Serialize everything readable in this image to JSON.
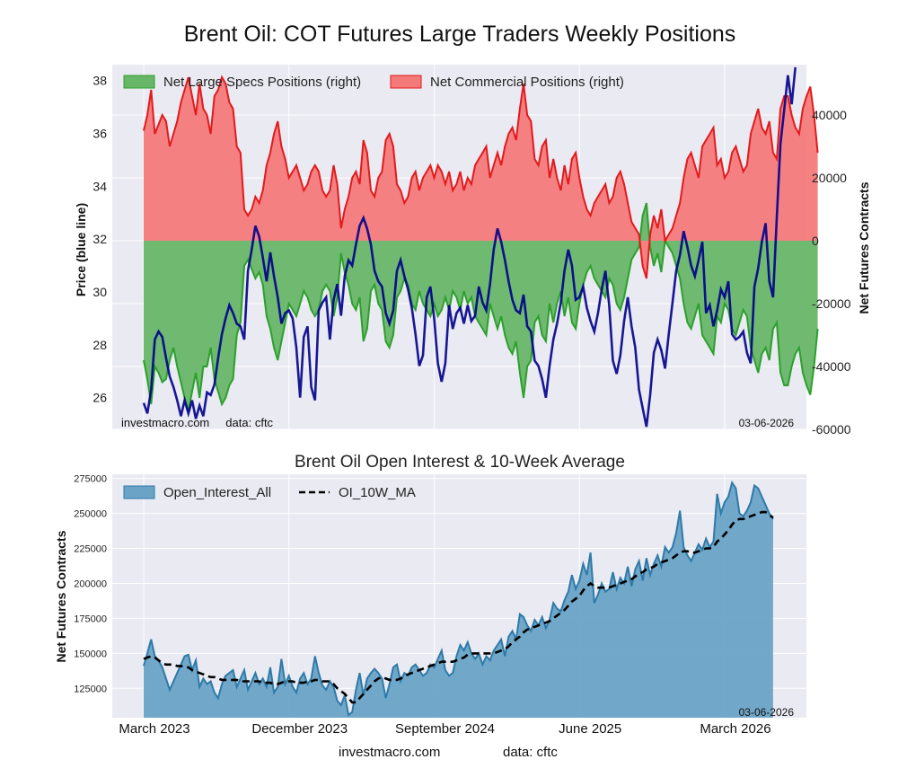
{
  "title": "Brent Oil: COT Futures Large Traders Weekly Positions",
  "footer": {
    "site": "investmacro.com",
    "source": "data: cftc"
  },
  "colors": {
    "plot_bg": "#eaeaf2",
    "grid": "#ffffff",
    "specs": "#2ca02c",
    "specs_fill": "#68b668",
    "commercial": "#e31a1c",
    "commercial_fill": "#f47a7a",
    "price": "#00008b",
    "oi": "#2e7aa8",
    "oi_fill": "#6aa3c6",
    "ma": "#000000"
  },
  "chart_data": [
    {
      "type": "area",
      "id": "positions",
      "title": "",
      "ylabel_left": "Price (blue line)",
      "ylabel_right": "Net Futures Contracts",
      "ylim_left": [
        24.8,
        38.6
      ],
      "ylim_right": [
        -60000,
        56000
      ],
      "yticks_left": [
        26,
        28,
        30,
        32,
        34,
        36,
        38
      ],
      "yticks_right": [
        -60000,
        -40000,
        -20000,
        0,
        20000,
        40000
      ],
      "xlim": [
        0,
        170
      ],
      "xtick_positions": [
        0,
        39,
        78,
        117,
        156
      ],
      "xticks": [
        "March 2023",
        "December 2023",
        "September 2024",
        "June 2025",
        "March 2026"
      ],
      "grid": true,
      "legend": "top-left",
      "annotation_left": "investmacro.com     data: cftc",
      "annotation_right": "03-06-2026",
      "series": [
        {
          "name": "Net Large Specs Positions (right)",
          "axis": "right",
          "kind": "area",
          "values": [
            -38000,
            -44000,
            -52000,
            -40000,
            -42000,
            -45000,
            -44000,
            -38000,
            -34000,
            -40000,
            -45000,
            -50000,
            -54000,
            -48000,
            -42000,
            -50000,
            -40000,
            -40000,
            -34000,
            -44000,
            -48000,
            -52000,
            -50000,
            -46000,
            -44000,
            -30000,
            -26000,
            -8000,
            -6000,
            -9000,
            -12000,
            -10000,
            -14000,
            -24000,
            -28000,
            -34000,
            -38000,
            -32000,
            -26000,
            -20000,
            -22000,
            -24000,
            -20000,
            -16000,
            -18000,
            -22000,
            -24000,
            -22000,
            -16000,
            -14000,
            -16000,
            -24000,
            -18000,
            -4000,
            -10000,
            -14000,
            -20000,
            -22000,
            -18000,
            -32000,
            -28000,
            -16000,
            -14000,
            -20000,
            -22000,
            -32000,
            -34000,
            -30000,
            -18000,
            -16000,
            -12000,
            -14000,
            -20000,
            -22000,
            -16000,
            -20000,
            -22000,
            -24000,
            -20000,
            -24000,
            -22000,
            -18000,
            -22000,
            -16000,
            -18000,
            -22000,
            -16000,
            -20000,
            -18000,
            -24000,
            -26000,
            -28000,
            -30000,
            -20000,
            -24000,
            -28000,
            -24000,
            -30000,
            -34000,
            -36000,
            -32000,
            -42000,
            -50000,
            -40000,
            -38000,
            -26000,
            -24000,
            -30000,
            -32000,
            -20000,
            -26000,
            -20000,
            -16000,
            -24000,
            -18000,
            -26000,
            -28000,
            -20000,
            -14000,
            -10000,
            -8000,
            -12000,
            -14000,
            -16000,
            -18000,
            -12000,
            -14000,
            -20000,
            -22000,
            -18000,
            -12000,
            -6000,
            -4000,
            -2000,
            8000,
            12000,
            -2000,
            -8000,
            -4000,
            -10000,
            0,
            -2000,
            -4000,
            -8000,
            -12000,
            -20000,
            -26000,
            -28000,
            -24000,
            -20000,
            -30000,
            -32000,
            -34000,
            -36000,
            -24000,
            -26000,
            -20000,
            -22000,
            -28000,
            -30000,
            -26000,
            -22000,
            -24000,
            -34000,
            -38000,
            -42000,
            -36000,
            -34000,
            -38000,
            -28000,
            -26000,
            -42000,
            -46000,
            -46000,
            -40000,
            -36000,
            -34000,
            -42000,
            -46000,
            -49000,
            -40000,
            -28000
          ]
        },
        {
          "name": "Net Commercial Positions (right)",
          "axis": "right",
          "kind": "area",
          "values": [
            35000,
            40000,
            48000,
            34000,
            37000,
            40000,
            38000,
            30000,
            34000,
            38000,
            44000,
            48000,
            52000,
            46000,
            40000,
            50000,
            42000,
            40000,
            34000,
            46000,
            48000,
            52000,
            50000,
            44000,
            42000,
            30000,
            28000,
            10000,
            8000,
            10000,
            14000,
            12000,
            16000,
            24000,
            28000,
            34000,
            38000,
            30000,
            26000,
            20000,
            22000,
            24000,
            20000,
            16000,
            18000,
            22000,
            24000,
            22000,
            16000,
            14000,
            16000,
            24000,
            18000,
            4000,
            10000,
            14000,
            20000,
            22000,
            18000,
            32000,
            28000,
            16000,
            14000,
            20000,
            22000,
            32000,
            34000,
            30000,
            18000,
            16000,
            12000,
            14000,
            20000,
            22000,
            16000,
            20000,
            22000,
            24000,
            20000,
            24000,
            22000,
            18000,
            22000,
            16000,
            18000,
            22000,
            16000,
            20000,
            18000,
            24000,
            26000,
            28000,
            30000,
            20000,
            24000,
            28000,
            24000,
            30000,
            34000,
            36000,
            32000,
            42000,
            50000,
            40000,
            38000,
            26000,
            24000,
            30000,
            32000,
            20000,
            26000,
            20000,
            16000,
            24000,
            18000,
            26000,
            28000,
            20000,
            14000,
            10000,
            8000,
            12000,
            14000,
            16000,
            18000,
            12000,
            14000,
            20000,
            22000,
            18000,
            12000,
            6000,
            4000,
            2000,
            -8000,
            -12000,
            2000,
            8000,
            4000,
            10000,
            0,
            2000,
            4000,
            8000,
            12000,
            20000,
            26000,
            28000,
            24000,
            20000,
            30000,
            32000,
            34000,
            36000,
            24000,
            26000,
            20000,
            22000,
            28000,
            30000,
            26000,
            22000,
            24000,
            34000,
            38000,
            42000,
            36000,
            34000,
            38000,
            28000,
            26000,
            42000,
            46000,
            46000,
            40000,
            36000,
            34000,
            42000,
            46000,
            49000,
            40000,
            28000
          ]
        },
        {
          "name": "",
          "axis": "left",
          "kind": "line",
          "values": [
            25.8,
            25.4,
            26.3,
            28.2,
            28.5,
            28.3,
            27.5,
            26.8,
            26.4,
            25.9,
            25.3,
            25.9,
            25.4,
            25.9,
            25.2,
            25.7,
            25.3,
            26.2,
            26.1,
            26.5,
            27.5,
            28.4,
            29.0,
            29.5,
            29.2,
            28.8,
            28.7,
            28.2,
            30.8,
            31.6,
            32.5,
            32.1,
            31.3,
            30.4,
            31.5,
            30.6,
            29.8,
            28.8,
            29.2,
            29.3,
            29.0,
            27.9,
            26.0,
            28.3,
            28.7,
            26.4,
            25.9,
            29.3,
            29.6,
            29.8,
            28.2,
            29.7,
            30.3,
            29.1,
            30.6,
            31.2,
            31.0,
            31.8,
            32.5,
            32.8,
            32.4,
            31.8,
            30.8,
            30.4,
            30.2,
            29.2,
            28.8,
            29.3,
            30.8,
            31.2,
            30.6,
            30.1,
            29.4,
            28.4,
            27.2,
            27.6,
            29.8,
            30.2,
            29.0,
            27.3,
            26.6,
            27.3,
            29.5,
            28.6,
            29.2,
            29.4,
            28.8,
            29.5,
            28.9,
            29.1,
            30.2,
            29.6,
            29.3,
            30.3,
            31.6,
            32.4,
            31.9,
            31.2,
            30.4,
            29.7,
            29.3,
            29.2,
            29.9,
            28.7,
            28.5,
            27.4,
            27.2,
            26.7,
            26.0,
            27.2,
            28.2,
            28.8,
            29.6,
            30.8,
            31.6,
            31.0,
            29.7,
            29.8,
            30.2,
            29.4,
            28.9,
            28.5,
            29.2,
            30.1,
            30.8,
            29.5,
            27.4,
            26.9,
            27.6,
            28.9,
            29.8,
            28.7,
            27.9,
            26.3,
            25.6,
            24.9,
            26.1,
            27.7,
            28.2,
            27.8,
            27.1,
            28.4,
            29.6,
            30.8,
            31.4,
            32.3,
            31.7,
            31.0,
            30.6,
            31.2,
            31.9,
            29.2,
            29.5,
            28.7,
            29.3,
            30.1,
            29.8,
            30.4,
            28.4,
            28.2,
            28.3,
            28.5,
            27.7,
            27.3,
            30.2,
            30.9,
            31.9,
            32.6,
            30.4,
            29.8,
            32.8,
            35.6,
            36.9,
            38.2,
            37.1,
            38.5
          ]
        }
      ]
    },
    {
      "type": "area",
      "id": "open-interest",
      "title": "Brent Oil Open Interest & 10-Week Average",
      "ylabel": "Net Futures Contracts",
      "ylim": [
        104000,
        278000
      ],
      "yticks": [
        125000,
        150000,
        175000,
        200000,
        225000,
        250000,
        275000
      ],
      "xlim": [
        0,
        170
      ],
      "xtick_positions": [
        0,
        39,
        78,
        117,
        156
      ],
      "xticks": [
        "March 2023",
        "December 2023",
        "September 2024",
        "June 2025",
        "March 2026"
      ],
      "grid": true,
      "legend": "top-left",
      "annotation_right": "03-06-2026",
      "series": [
        {
          "name": "Open_Interest_All",
          "kind": "area",
          "values": [
            141000,
            150000,
            160000,
            148000,
            145000,
            140000,
            132000,
            124000,
            130000,
            136000,
            142000,
            148000,
            149000,
            138000,
            145000,
            126000,
            132000,
            128000,
            130000,
            122000,
            118000,
            128000,
            134000,
            136000,
            138000,
            126000,
            132000,
            138000,
            124000,
            130000,
            136000,
            128000,
            132000,
            126000,
            140000,
            122000,
            126000,
            146000,
            128000,
            134000,
            126000,
            122000,
            132000,
            136000,
            128000,
            132000,
            148000,
            136000,
            127000,
            124000,
            130000,
            126000,
            116000,
            113000,
            120000,
            106000,
            108000,
            124000,
            136000,
            120000,
            132000,
            136000,
            139000,
            136000,
            132000,
            118000,
            128000,
            140000,
            142000,
            130000,
            136000,
            134000,
            140000,
            142000,
            138000,
            134000,
            136000,
            142000,
            140000,
            146000,
            152000,
            138000,
            134000,
            136000,
            148000,
            156000,
            152000,
            158000,
            150000,
            146000,
            150000,
            142000,
            148000,
            145000,
            152000,
            156000,
            160000,
            148000,
            162000,
            166000,
            160000,
            178000,
            176000,
            170000,
            166000,
            174000,
            170000,
            176000,
            168000,
            174000,
            186000,
            182000,
            180000,
            188000,
            194000,
            206000,
            196000,
            202000,
            214000,
            206000,
            222000,
            186000,
            192000,
            200000,
            194000,
            196000,
            208000,
            196000,
            204000,
            200000,
            212000,
            198000,
            210000,
            216000,
            202000,
            218000,
            206000,
            214000,
            220000,
            212000,
            226000,
            222000,
            226000,
            236000,
            252000,
            226000,
            220000,
            216000,
            222000,
            228000,
            224000,
            232000,
            226000,
            230000,
            264000,
            250000,
            258000,
            262000,
            272000,
            268000,
            250000,
            248000,
            252000,
            258000,
            270000,
            268000,
            262000,
            256000,
            250000,
            246000
          ]
        },
        {
          "name": "OI_10W_MA",
          "kind": "line",
          "values": [
            146000,
            147000,
            148000,
            147000,
            145000,
            143000,
            142000,
            142000,
            142000,
            141000,
            141000,
            140000,
            140000,
            138000,
            137000,
            136000,
            135000,
            134000,
            133000,
            133000,
            132000,
            131000,
            131000,
            131000,
            131000,
            131000,
            130000,
            130000,
            130000,
            130000,
            130000,
            130000,
            129000,
            129000,
            129000,
            128000,
            128000,
            129000,
            130000,
            130000,
            130000,
            129000,
            129000,
            129000,
            130000,
            130000,
            131000,
            131000,
            130000,
            130000,
            130000,
            128000,
            125000,
            123000,
            121000,
            118000,
            115000,
            115000,
            118000,
            121000,
            124000,
            127000,
            130000,
            132000,
            133000,
            132000,
            131000,
            131000,
            131000,
            132000,
            134000,
            135000,
            136000,
            137000,
            138000,
            139000,
            140000,
            141000,
            142000,
            143000,
            144000,
            144000,
            144000,
            144000,
            145000,
            146000,
            147000,
            149000,
            150000,
            150000,
            150000,
            150000,
            150000,
            150000,
            150000,
            151000,
            152000,
            153000,
            155000,
            158000,
            160000,
            162000,
            165000,
            167000,
            168000,
            169000,
            170000,
            171000,
            172000,
            173000,
            175000,
            177000,
            179000,
            181000,
            184000,
            187000,
            189000,
            191000,
            195000,
            198000,
            200000,
            198000,
            197000,
            197000,
            197000,
            197000,
            198000,
            199000,
            200000,
            201000,
            202000,
            203000,
            205000,
            207000,
            208000,
            210000,
            211000,
            212000,
            214000,
            215000,
            216000,
            217000,
            218000,
            220000,
            222000,
            223000,
            223000,
            222000,
            222000,
            223000,
            224000,
            225000,
            225000,
            226000,
            230000,
            232000,
            235000,
            238000,
            242000,
            245000,
            246000,
            246000,
            247000,
            248000,
            249000,
            250000,
            251000,
            251000,
            249000,
            247000
          ]
        }
      ]
    }
  ]
}
